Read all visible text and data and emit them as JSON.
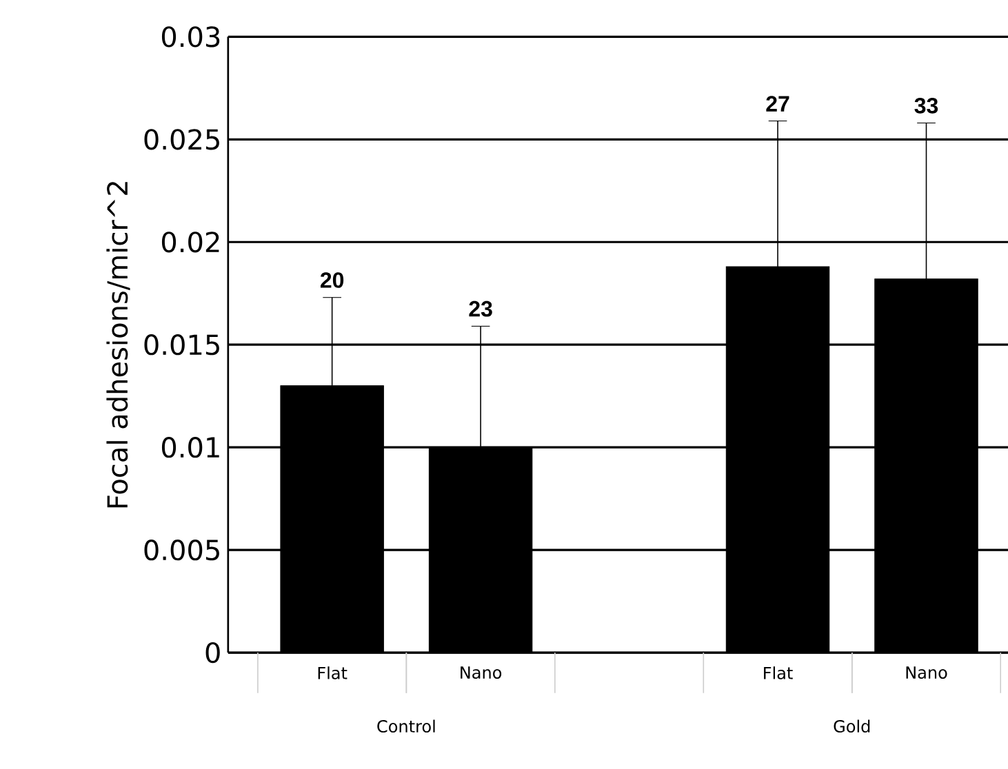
{
  "chart_data": {
    "type": "bar",
    "ylabel": "Focal adhesions/micr^2",
    "categories": [
      "Flat",
      "Nano",
      null,
      "Flat",
      "Nano"
    ],
    "values": [
      0.013,
      0.01,
      null,
      0.0188,
      0.0182
    ],
    "errors": [
      [
        0.013,
        0.0173
      ],
      [
        0.01,
        0.0159
      ],
      null,
      [
        0.0188,
        0.0259
      ],
      [
        0.0182,
        0.0258
      ]
    ],
    "annotations": [
      "20",
      "23",
      "27",
      "33",
      "Control",
      "Gold"
    ],
    "color": "#000000",
    "ylim": [
      0,
      0.03
    ],
    "yticks": [
      0,
      0.005,
      0.01,
      0.015,
      0.02,
      0.025,
      0.03
    ],
    "grid": "y"
  }
}
